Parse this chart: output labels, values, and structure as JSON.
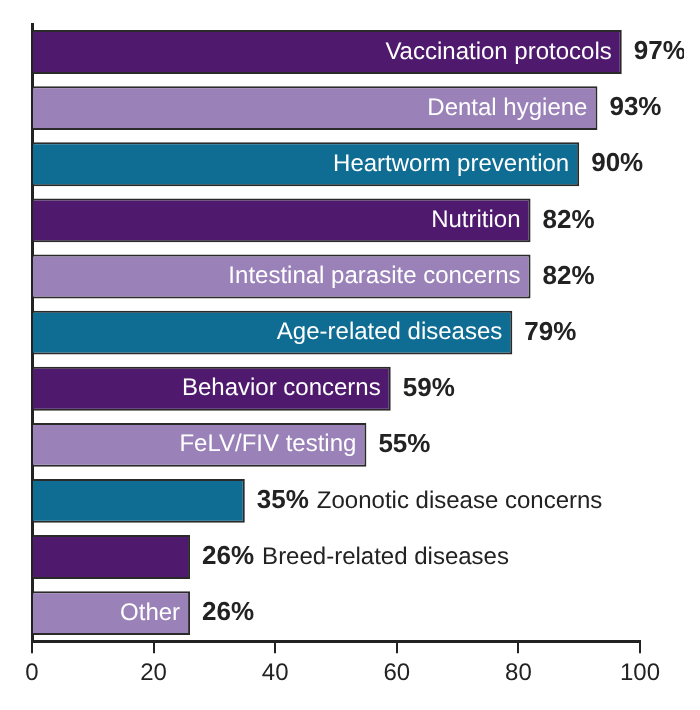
{
  "chart_data": {
    "type": "bar",
    "orientation": "horizontal",
    "categories": [
      "Vaccination protocols",
      "Dental hygiene",
      "Heartworm prevention",
      "Nutrition",
      "Intestinal parasite concerns",
      "Age-related diseases",
      "Behavior concerns",
      "FeLV/FIV testing",
      "Zoonotic disease concerns",
      "Breed-related diseases",
      "Other"
    ],
    "values": [
      97,
      93,
      90,
      82,
      82,
      79,
      59,
      55,
      35,
      26,
      26
    ],
    "colors": [
      "#4f1a6e",
      "#9a82b8",
      "#0f6d94",
      "#4f1a6e",
      "#9a82b8",
      "#0f6d94",
      "#4f1a6e",
      "#9a82b8",
      "#0f6d94",
      "#4f1a6e",
      "#9a82b8"
    ],
    "value_labels": [
      "97%",
      "93%",
      "90%",
      "82%",
      "82%",
      "79%",
      "59%",
      "55%",
      "35%",
      "26%",
      "26%"
    ],
    "xlim": [
      0,
      100
    ],
    "xticks": [
      0,
      20,
      40,
      60,
      80,
      100
    ],
    "grid": false,
    "legend": false
  }
}
